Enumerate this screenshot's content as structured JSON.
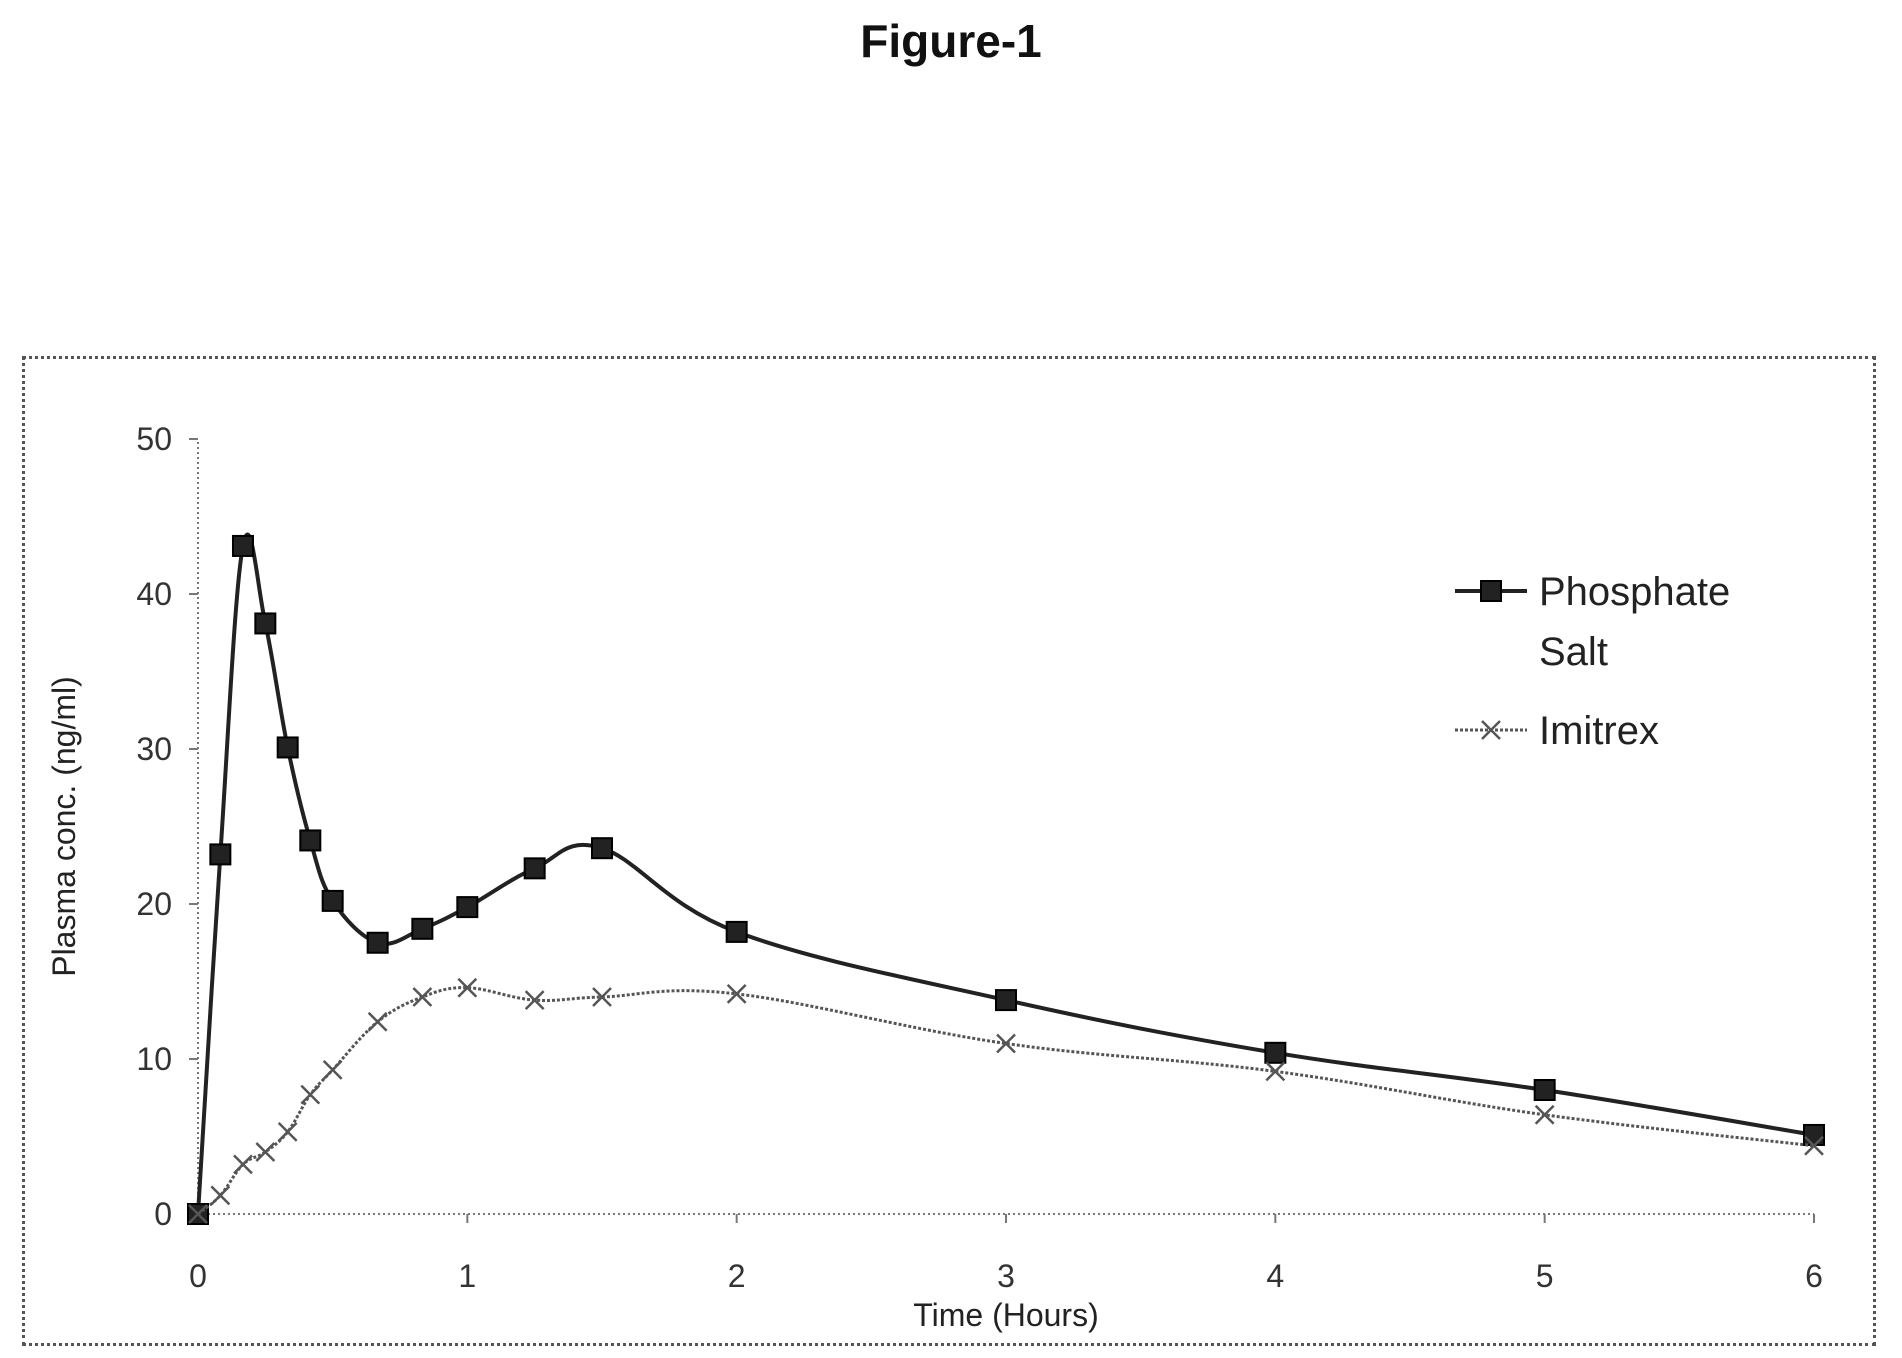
{
  "figure_title": "Figure-1",
  "chart_data": {
    "type": "line",
    "title": "",
    "xlabel": "Time (Hours)",
    "ylabel": "Plasma conc. (ng/ml)",
    "xlim": [
      0,
      6
    ],
    "ylim": [
      0,
      50
    ],
    "xticks": [
      "0",
      "1",
      "2",
      "3",
      "4",
      "5",
      "6"
    ],
    "yticks": [
      "0",
      "10",
      "20",
      "30",
      "40",
      "50"
    ],
    "grid": false,
    "legend_position": "right",
    "series": [
      {
        "name": "Phosphate Salt",
        "marker": "square",
        "color": "#222222",
        "x": [
          0,
          0.083,
          0.167,
          0.25,
          0.333,
          0.417,
          0.5,
          0.667,
          0.833,
          1.0,
          1.25,
          1.5,
          2,
          3,
          4,
          5,
          6
        ],
        "y": [
          0,
          23.2,
          43.1,
          38.1,
          30.1,
          24.1,
          20.2,
          17.5,
          18.4,
          19.8,
          22.3,
          23.6,
          18.2,
          13.8,
          10.4,
          8.0,
          5.1
        ]
      },
      {
        "name": "Imitrex",
        "marker": "x",
        "color": "#555555",
        "x": [
          0,
          0.083,
          0.167,
          0.25,
          0.333,
          0.417,
          0.5,
          0.667,
          0.833,
          1.0,
          1.25,
          1.5,
          2,
          3,
          4,
          5,
          6
        ],
        "y": [
          0,
          1.2,
          3.2,
          4.0,
          5.3,
          7.7,
          9.3,
          12.4,
          14.0,
          14.6,
          13.8,
          14.0,
          14.2,
          11.0,
          9.2,
          6.4,
          4.4
        ]
      }
    ]
  }
}
